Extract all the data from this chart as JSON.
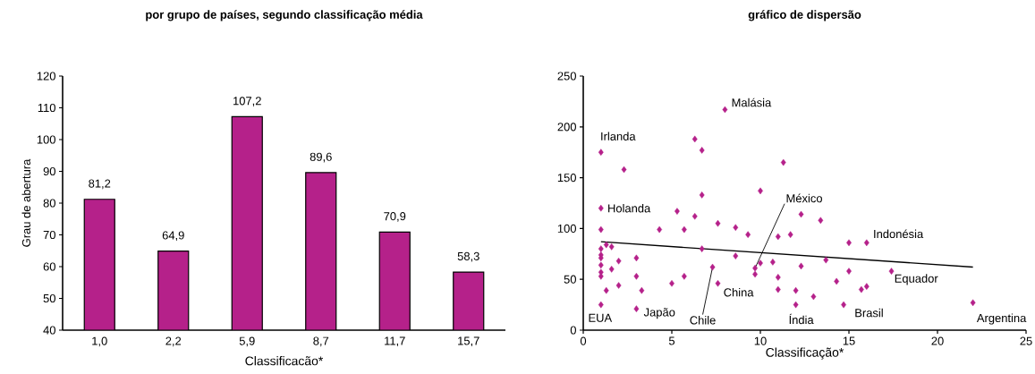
{
  "chart_data": [
    {
      "type": "bar",
      "title": "por grupo de países, segundo classificação média",
      "xlabel": "Classificacão*",
      "ylabel": "Grau de abertura",
      "categories": [
        "1,0",
        "2,2",
        "5,9",
        "8,7",
        "11,7",
        "15,7"
      ],
      "values": [
        81.2,
        64.9,
        107.2,
        89.6,
        70.9,
        58.3
      ],
      "value_labels": [
        "81,2",
        "64,9",
        "107,2",
        "89,6",
        "70,9",
        "58,3"
      ],
      "color": "#b5218a",
      "ylim": [
        40,
        120
      ],
      "yticks": [
        40,
        50,
        60,
        70,
        80,
        90,
        100,
        110,
        120
      ]
    },
    {
      "type": "scatter",
      "title": "gráfico de dispersão",
      "xlabel": "Classificação*",
      "series": [
        {
          "type": "scatter",
          "color": "#b5218a",
          "marker": "diamond",
          "x": [
            1.0,
            2.3,
            6.3,
            6.7,
            8.0,
            11.3,
            6.7,
            10.0,
            1.0,
            5.3,
            6.3,
            1.0,
            4.3,
            5.7,
            7.6,
            8.6,
            9.3,
            11.0,
            11.7,
            12.3,
            1.0,
            1.3,
            1.6,
            1.0,
            1.0,
            1.0,
            1.0,
            1.0,
            2.0,
            1.6,
            3.0,
            3.0,
            1.3,
            2.0,
            3.3,
            1.0,
            3.0,
            5.0,
            5.7,
            6.7,
            7.3,
            7.6,
            8.6,
            9.7,
            9.7,
            10.0,
            10.7,
            11.0,
            11.0,
            12.0,
            12.0,
            12.3,
            13.4,
            15.0,
            16.0,
            13.7,
            15.0,
            17.4,
            14.3,
            15.7,
            16.0,
            13.0,
            14.7,
            22.0
          ],
          "values": [
            175,
            158,
            188,
            177,
            217,
            165,
            133,
            137,
            120,
            117,
            112,
            99,
            99,
            99,
            105,
            101,
            94,
            92,
            94,
            114,
            80,
            84,
            82,
            74,
            71,
            64,
            57,
            53,
            68,
            60,
            71,
            53,
            39,
            44,
            39,
            25,
            21,
            46,
            53,
            80,
            62,
            46,
            73,
            61,
            55,
            66,
            67,
            52,
            40,
            39,
            25,
            63,
            108,
            86,
            86,
            69,
            58,
            58,
            48,
            40,
            43,
            33,
            25,
            27
          ]
        },
        {
          "type": "line",
          "color": "#000000",
          "x": [
            1,
            22
          ],
          "values": [
            87,
            62
          ]
        }
      ],
      "annotations": [
        {
          "text": "Malásia",
          "x": 8.0,
          "y": 217
        },
        {
          "text": "Irlanda",
          "x": 1.0,
          "y": 175
        },
        {
          "text": "Holanda",
          "x": 1.0,
          "y": 120
        },
        {
          "text": "México",
          "x": 9.7,
          "y": 61
        },
        {
          "text": "Indonésia",
          "x": 16.0,
          "y": 86
        },
        {
          "text": "Equador",
          "x": 17.4,
          "y": 58
        },
        {
          "text": "China",
          "x": 7.6,
          "y": 46
        },
        {
          "text": "Chile",
          "x": 7.3,
          "y": 62
        },
        {
          "text": "Japão",
          "x": 3.0,
          "y": 21
        },
        {
          "text": "EUA",
          "x": 1.0,
          "y": 25
        },
        {
          "text": "Índia",
          "x": 12.0,
          "y": 25
        },
        {
          "text": "Brasil",
          "x": 14.7,
          "y": 25
        },
        {
          "text": "Argentina",
          "x": 22.0,
          "y": 27
        }
      ],
      "xlim": [
        0,
        25
      ],
      "ylim": [
        0,
        250
      ],
      "xticks": [
        0,
        5,
        10,
        15,
        20,
        25
      ],
      "yticks": [
        0,
        50,
        100,
        150,
        200,
        250
      ]
    }
  ]
}
